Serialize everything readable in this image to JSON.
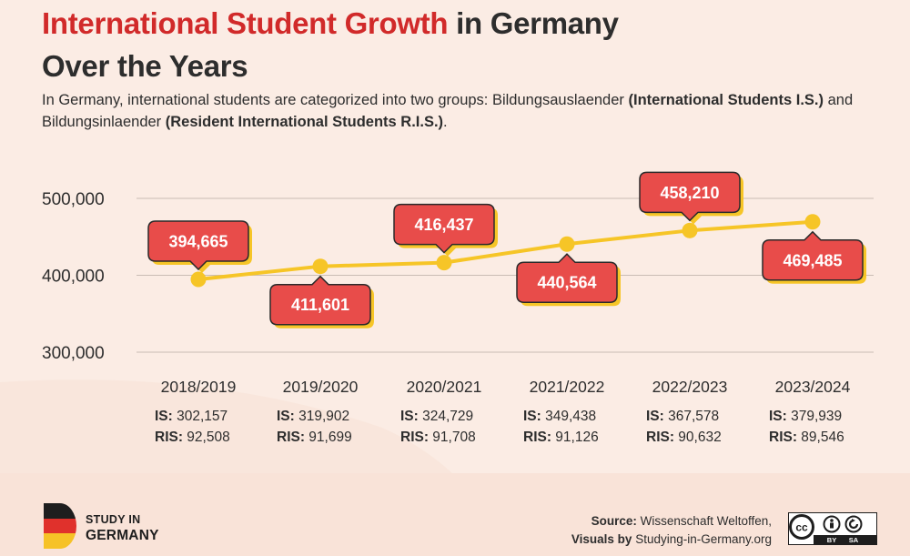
{
  "title": {
    "highlight": "International Student Growth",
    "rest": " in Germany",
    "line2": "Over the Years"
  },
  "subtitle": {
    "t1": "In Germany, international students are categorized into two groups: Bildungsauslaender ",
    "b1": "(International Students I.S.)",
    "t2": " and Bildungsinlaender ",
    "b2": "(Resident International Students R.I.S.)",
    "t3": "."
  },
  "chart_data": {
    "type": "line",
    "categories": [
      "2018/2019",
      "2019/2020",
      "2020/2021",
      "2021/2022",
      "2022/2023",
      "2023/2024"
    ],
    "values": [
      394665,
      411601,
      416437,
      440564,
      458210,
      469485
    ],
    "data_labels": [
      "394,665",
      "411,601",
      "416,437",
      "440,564",
      "458,210",
      "469,485"
    ],
    "callout_side": [
      "above",
      "below",
      "above",
      "below",
      "above",
      "below"
    ],
    "y_ticks": [
      300000,
      400000,
      500000
    ],
    "y_tick_labels": [
      "300,000",
      "400,000",
      "500,000"
    ],
    "ylim": [
      300000,
      500000
    ],
    "grid": true,
    "breakdown": [
      {
        "is": "302,157",
        "ris": "92,508"
      },
      {
        "is": "319,902",
        "ris": "91,699"
      },
      {
        "is": "324,729",
        "ris": "91,708"
      },
      {
        "is": "349,438",
        "ris": "91,126"
      },
      {
        "is": "367,578",
        "ris": "90,632"
      },
      {
        "is": "379,939",
        "ris": "89,546"
      }
    ],
    "is_prefix": "IS:",
    "ris_prefix": "RIS:",
    "colors": {
      "line": "#f6c527",
      "callout": "#e84c4a",
      "grid": "#c9bcb4"
    }
  },
  "footer": {
    "brand_line1": "STUDY IN",
    "brand_line2": "GERMANY",
    "source_label": "Source:",
    "source_value": " Wissenschaft Weltoffen,",
    "visuals_label": "Visuals by",
    "visuals_value": " Studying-in-Germany.org",
    "license_by": "BY",
    "license_sa": "SA",
    "license_cc": "cc"
  }
}
